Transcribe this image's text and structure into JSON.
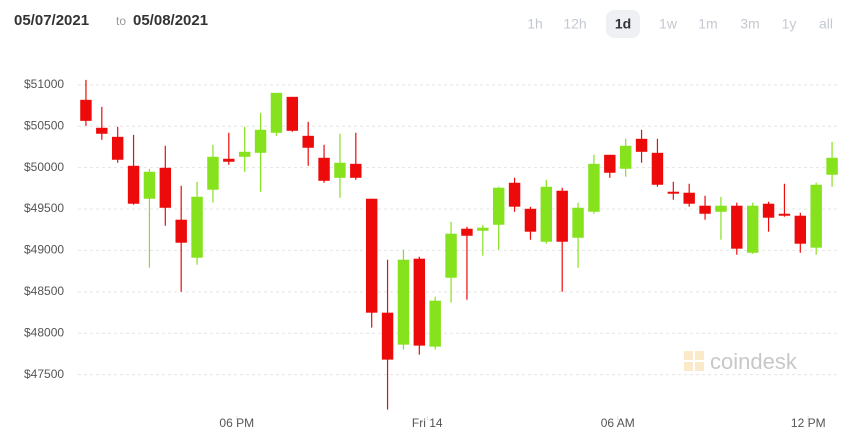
{
  "chart_data": {
    "type": "candlestick",
    "date_from": "05/07/2021",
    "date_sep": "to",
    "date_to": "05/08/2021",
    "ranges": [
      "1h",
      "12h",
      "1d",
      "1w",
      "1m",
      "3m",
      "1y",
      "all"
    ],
    "selected_range": 2,
    "watermark": "coindesk",
    "up_color": "#86e21d",
    "down_color": "#ec0a0a",
    "grid": true,
    "x": [
      1.25,
      1.75,
      2.25,
      2.75,
      3.25,
      3.75,
      4.25,
      4.75,
      5.25,
      5.75,
      6.25,
      6.75,
      7.25,
      7.75,
      8.25,
      8.75,
      9.25,
      9.75,
      10.25,
      10.75,
      11.25,
      11.75,
      12.25,
      12.75,
      13.25,
      13.75,
      14.25,
      14.75,
      15.25,
      15.75,
      16.25,
      16.75,
      17.25,
      17.75,
      18.25,
      18.75,
      19.25,
      19.75,
      20.25,
      20.75,
      21.25,
      21.75,
      22.25,
      22.75,
      23.25,
      23.75,
      24.25,
      24.75
    ],
    "open": [
      50819,
      50481,
      50372,
      50022,
      49624,
      49998,
      49371,
      48912,
      49733,
      50107,
      50131,
      50179,
      50421,
      50855,
      50384,
      50119,
      49877,
      50046,
      49624,
      48248,
      47862,
      48900,
      47838,
      48670,
      49262,
      49238,
      49310,
      49817,
      49503,
      49105,
      49721,
      49153,
      49467,
      50155,
      49986,
      50348,
      50179,
      49709,
      49697,
      49540,
      49467,
      49540,
      48972,
      49564,
      49443,
      49419,
      49033,
      49914
    ],
    "high": [
      51060,
      50734,
      50493,
      50396,
      49986,
      50264,
      49781,
      49829,
      50276,
      50421,
      50493,
      50662,
      50903,
      50855,
      50553,
      50276,
      50409,
      50421,
      49624,
      48888,
      49008,
      48924,
      48441,
      49346,
      49286,
      49310,
      49769,
      49877,
      49527,
      49853,
      49757,
      49576,
      50155,
      50155,
      50348,
      50457,
      50348,
      49829,
      49805,
      49660,
      49648,
      49576,
      49576,
      49588,
      49805,
      49455,
      49817,
      50312
    ],
    "low": [
      50505,
      50336,
      50059,
      49552,
      48791,
      49298,
      48501,
      48827,
      49576,
      50034,
      49950,
      49709,
      50384,
      50433,
      50022,
      49817,
      49636,
      49853,
      48067,
      47077,
      47802,
      47741,
      47802,
      48369,
      48405,
      48936,
      49009,
      49467,
      49129,
      49081,
      48501,
      48791,
      49443,
      49877,
      49890,
      50059,
      49769,
      49612,
      49528,
      49371,
      49129,
      48948,
      48960,
      49226,
      49407,
      48972,
      48948,
      49769
    ],
    "close": [
      50565,
      50409,
      50095,
      49564,
      49950,
      49515,
      49093,
      49648,
      50131,
      50071,
      50191,
      50457,
      50903,
      50445,
      50240,
      49841,
      50059,
      49877,
      48248,
      47681,
      48888,
      47850,
      48393,
      49202,
      49177,
      49274,
      49757,
      49528,
      49226,
      49769,
      49105,
      49515,
      50046,
      49938,
      50264,
      50191,
      49793,
      49685,
      49564,
      49443,
      49540,
      49021,
      49540,
      49395,
      49419,
      49081,
      49793,
      50119
    ],
    "xlim": [
      1,
      25
    ],
    "xticks": [
      {
        "value": 6,
        "label": "06 PM"
      },
      {
        "value": 12,
        "label": "Fri 14"
      },
      {
        "value": 18,
        "label": "06 AM"
      },
      {
        "value": 24,
        "label": "12 PM"
      }
    ],
    "ylim": [
      47000,
      51300
    ],
    "yticks": [
      {
        "value": 47500,
        "label": "$47500"
      },
      {
        "value": 48000,
        "label": "$48000"
      },
      {
        "value": 48500,
        "label": "$48500"
      },
      {
        "value": 49000,
        "label": "$49000"
      },
      {
        "value": 49500,
        "label": "$49500"
      },
      {
        "value": 50000,
        "label": "$50000"
      },
      {
        "value": 50500,
        "label": "$50500"
      },
      {
        "value": 51000,
        "label": "$51000"
      }
    ]
  }
}
